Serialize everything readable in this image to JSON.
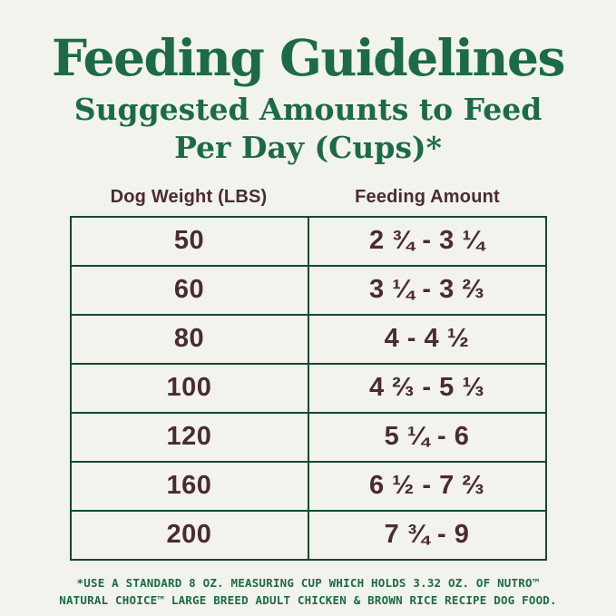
{
  "page": {
    "title": "Feeding Guidelines",
    "subtitle_line1": "Suggested Amounts to Feed",
    "subtitle_line2": "Per Day (Cups)*"
  },
  "table": {
    "headers": {
      "weight": "Dog Weight (LBS)",
      "amount": "Feeding Amount"
    },
    "rows": [
      {
        "weight": "50",
        "amount": "2 ¾ - 3 ¼"
      },
      {
        "weight": "60",
        "amount": "3 ¼ - 3 ⅔"
      },
      {
        "weight": "80",
        "amount": "4 - 4 ½"
      },
      {
        "weight": "100",
        "amount": "4 ⅔ - 5 ⅓"
      },
      {
        "weight": "120",
        "amount": "5 ¼ - 6"
      },
      {
        "weight": "160",
        "amount": "6 ½ - 7 ⅔"
      },
      {
        "weight": "200",
        "amount": "7 ¾ - 9"
      }
    ]
  },
  "footnote": {
    "line1": "*USE A STANDARD 8 OZ. MEASURING CUP WHICH HOLDS 3.32 OZ. OF NUTRO™",
    "line2": "NATURAL CHOICE™ LARGE BREED ADULT CHICKEN & BROWN RICE RECIPE DOG FOOD."
  },
  "colors": {
    "background": "#f1f3ec",
    "green_text": "#1d6b45",
    "table_border": "#16492f",
    "brown_text": "#4a2b33"
  },
  "chart_data": {
    "type": "table",
    "title": "Feeding Guidelines",
    "subtitle": "Suggested Amounts to Feed Per Day (Cups)*",
    "columns": [
      "Dog Weight (LBS)",
      "Feeding Amount"
    ],
    "rows": [
      [
        "50",
        "2 ¾ - 3 ¼"
      ],
      [
        "60",
        "3 ¼ - 3 ⅔"
      ],
      [
        "80",
        "4 - 4 ½"
      ],
      [
        "100",
        "4 ⅔ - 5 ⅓"
      ],
      [
        "120",
        "5 ¼ - 6"
      ],
      [
        "160",
        "6 ½ - 7 ⅔"
      ],
      [
        "200",
        "7 ¾ - 9"
      ]
    ],
    "footnote": "*USE A STANDARD 8 OZ. MEASURING CUP WHICH HOLDS 3.32 OZ. OF NUTRO™ NATURAL CHOICE™ LARGE BREED ADULT CHICKEN & BROWN RICE RECIPE DOG FOOD.",
    "units": "cups per day"
  }
}
